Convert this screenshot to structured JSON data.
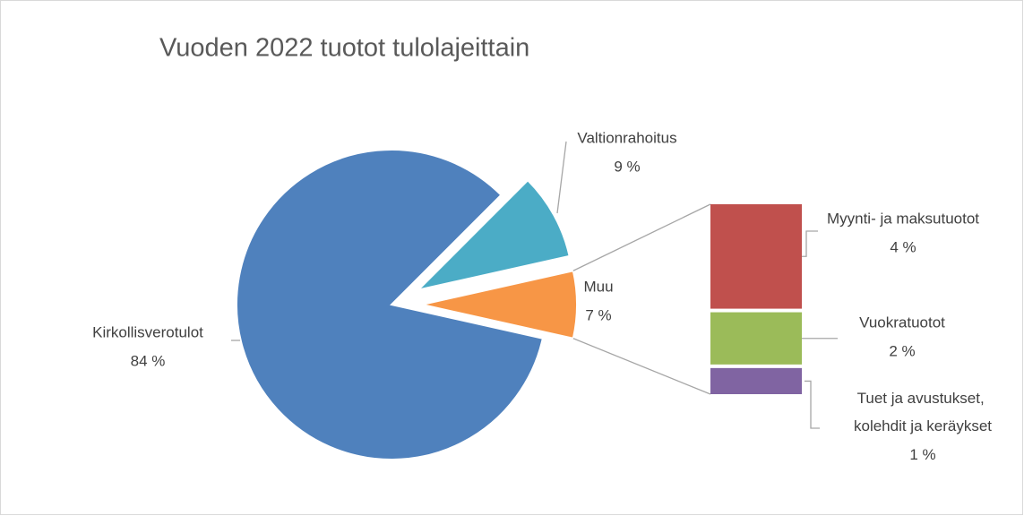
{
  "chart_data": {
    "type": "pie-of-bar",
    "title": "Vuoden 2022 tuotot tulolajeittain",
    "categories": [
      "Kirkollisverotulot",
      "Valtionrahoitus",
      "Muu"
    ],
    "values": [
      84,
      9,
      7
    ],
    "value_labels": [
      "84 %",
      "9 %",
      "7 %"
    ],
    "colors": [
      "#4f81bd",
      "#4bacc6",
      "#f79646"
    ],
    "exploded": [
      false,
      true,
      true
    ],
    "secondary": {
      "categories": [
        "Myynti- ja maksutuotot",
        "Vuokratuotot",
        "Tuet ja avustukset, kolehdit ja keräykset"
      ],
      "values": [
        4,
        2,
        1
      ],
      "value_labels": [
        "4 %",
        "2 %",
        "1 %"
      ],
      "colors": [
        "#c0504d",
        "#9bbb59",
        "#8064a2"
      ]
    }
  }
}
